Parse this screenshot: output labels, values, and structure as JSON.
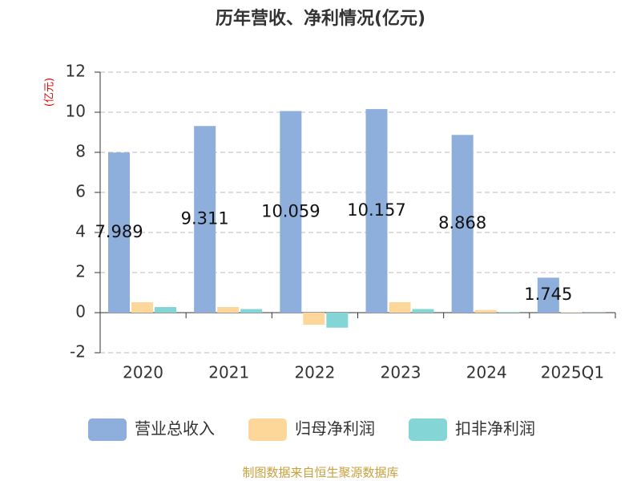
{
  "chart_data": {
    "type": "bar",
    "title": "历年营收、净利情况(亿元)",
    "y_label": "(亿元)",
    "source": "制图数据来自恒生聚源数据库",
    "categories": [
      "2020",
      "2021",
      "2022",
      "2023",
      "2024",
      "2025Q1"
    ],
    "series": [
      {
        "name": "营业总收入",
        "color": "#8eaedb",
        "values": [
          7.989,
          9.311,
          10.059,
          10.157,
          8.868,
          1.745
        ],
        "data_labels": true
      },
      {
        "name": "归母净利润",
        "color": "#fdd69a",
        "values": [
          0.52,
          0.28,
          -0.6,
          0.52,
          0.13,
          0.02
        ]
      },
      {
        "name": "扣非净利润",
        "color": "#84d5d6",
        "values": [
          0.28,
          0.18,
          -0.75,
          0.18,
          0.03,
          0.01
        ]
      }
    ],
    "ylim": [
      -2,
      12
    ],
    "yticks": [
      -2,
      0,
      2,
      4,
      6,
      8,
      10,
      12
    ],
    "grid": true
  }
}
